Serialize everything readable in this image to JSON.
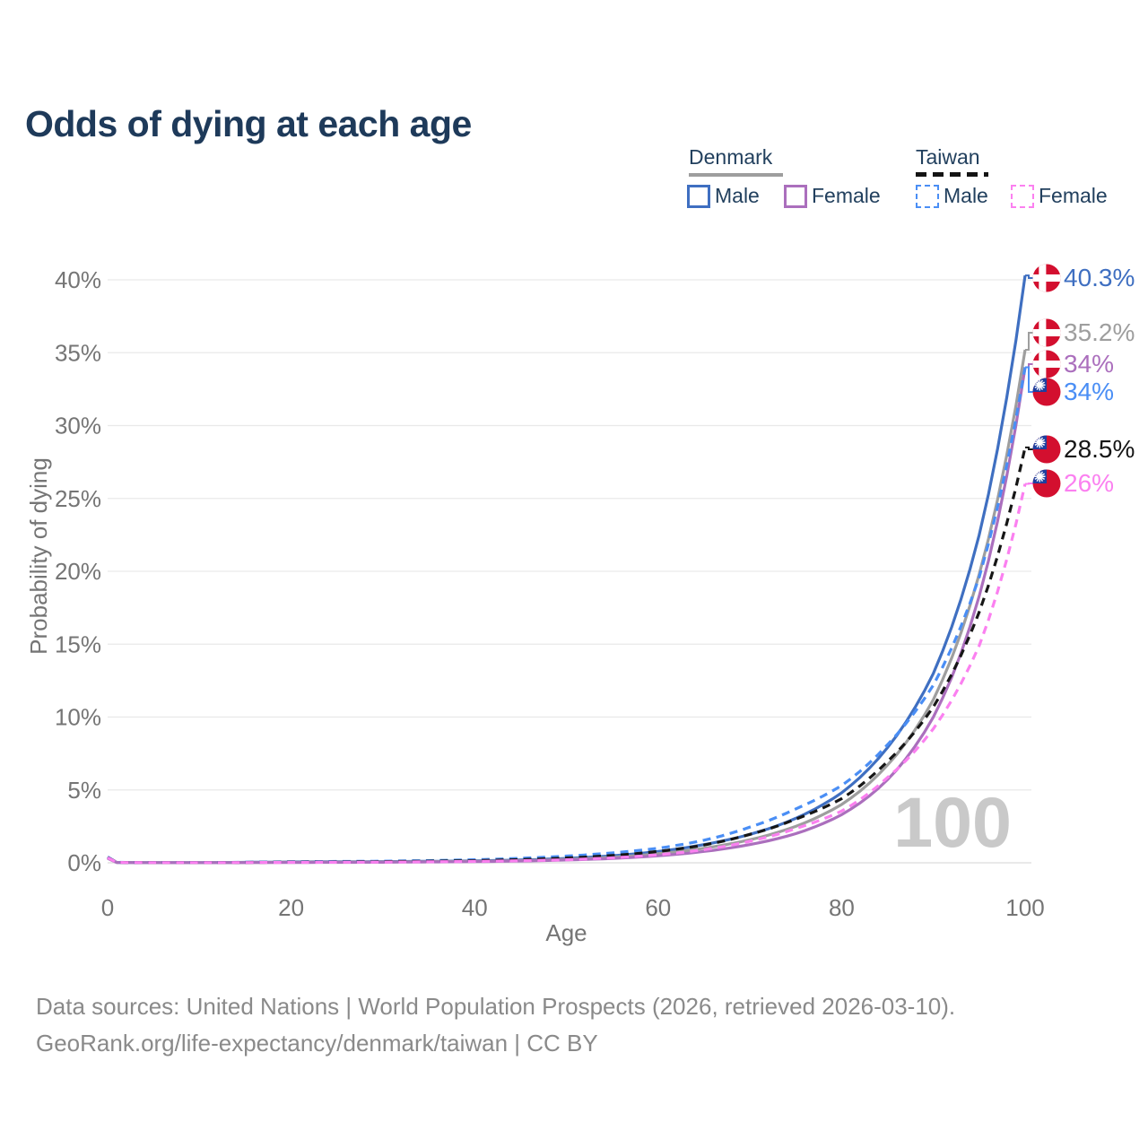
{
  "title": "Odds of dying at each age",
  "legend": {
    "groups": [
      {
        "label": "Denmark",
        "line_style": "solid",
        "line_color": "#9e9e9e",
        "items": [
          {
            "label": "Male",
            "swatch_color": "#4a77c2",
            "swatch_style": "solid"
          },
          {
            "label": "Female",
            "swatch_color": "#bd84c0",
            "swatch_style": "solid"
          }
        ]
      },
      {
        "label": "Taiwan",
        "line_style": "dashed",
        "line_color": "#141414",
        "items": [
          {
            "label": "Male",
            "swatch_color": "#4a8ef5",
            "swatch_style": "dashed"
          },
          {
            "label": "Female",
            "swatch_color": "#fb85f0",
            "swatch_style": "dashed"
          }
        ]
      }
    ]
  },
  "watermark_age": "100",
  "axis": {
    "x_title": "Age",
    "y_title": "Probability of dying",
    "x_tick_labels": [
      "0",
      "20",
      "40",
      "60",
      "80",
      "100"
    ],
    "y_tick_labels": [
      "0%",
      "5%",
      "10%",
      "15%",
      "20%",
      "25%",
      "30%",
      "35%",
      "40%"
    ]
  },
  "chart_data": {
    "type": "line",
    "title": "Odds of dying at each age",
    "xlabel": "Age",
    "ylabel": "Probability of dying",
    "xlim": [
      0,
      100
    ],
    "ylim": [
      0,
      40
    ],
    "unit": "percent",
    "grid": "horizontal",
    "legend_position": "top-right",
    "x_ticks": [
      0,
      20,
      40,
      60,
      80,
      100
    ],
    "y_ticks": [
      0,
      5,
      10,
      15,
      20,
      25,
      30,
      35,
      40
    ],
    "ages": [
      0,
      1,
      5,
      10,
      15,
      20,
      25,
      30,
      35,
      40,
      45,
      50,
      55,
      60,
      65,
      70,
      75,
      80,
      85,
      90,
      95,
      100
    ],
    "series": [
      {
        "name": "Denmark Male",
        "country": "Denmark",
        "sex": "Male",
        "color": "#3f6fc1",
        "dash": "solid",
        "flag": "denmark",
        "end_label": "40.3%",
        "end_value": 40.3,
        "values": [
          0.35,
          0.03,
          0.01,
          0.01,
          0.03,
          0.06,
          0.07,
          0.08,
          0.1,
          0.13,
          0.19,
          0.3,
          0.48,
          0.78,
          1.25,
          1.95,
          3.05,
          4.8,
          7.9,
          13.0,
          22.5,
          40.3
        ]
      },
      {
        "name": "Denmark",
        "country": "Denmark",
        "sex": "Both",
        "color": "#9e9e9e",
        "dash": "solid",
        "flag": "denmark",
        "end_label": "35.2%",
        "end_value": 35.2,
        "values": [
          0.33,
          0.025,
          0.01,
          0.01,
          0.02,
          0.045,
          0.05,
          0.06,
          0.08,
          0.1,
          0.15,
          0.24,
          0.38,
          0.62,
          1.0,
          1.58,
          2.5,
          4.0,
          6.7,
          11.2,
          19.8,
          35.2
        ]
      },
      {
        "name": "Denmark Female",
        "country": "Denmark",
        "sex": "Female",
        "color": "#ab6fbd",
        "dash": "solid",
        "flag": "denmark",
        "end_label": "34%",
        "end_value": 34,
        "values": [
          0.3,
          0.02,
          0.01,
          0.01,
          0.015,
          0.025,
          0.03,
          0.04,
          0.06,
          0.08,
          0.12,
          0.19,
          0.3,
          0.48,
          0.78,
          1.25,
          2.0,
          3.3,
          5.7,
          10.0,
          18.3,
          34.0
        ]
      },
      {
        "name": "Taiwan Male",
        "country": "Taiwan",
        "sex": "Male",
        "color": "#4a8ef5",
        "dash": "dashed",
        "flag": "taiwan",
        "end_label": "34%",
        "end_value": 34,
        "values": [
          0.4,
          0.03,
          0.01,
          0.012,
          0.035,
          0.07,
          0.09,
          0.11,
          0.15,
          0.21,
          0.31,
          0.46,
          0.68,
          1.0,
          1.55,
          2.45,
          3.7,
          5.3,
          8.1,
          12.2,
          19.6,
          34.0
        ]
      },
      {
        "name": "Taiwan",
        "country": "Taiwan",
        "sex": "Both",
        "color": "#161616",
        "dash": "dashed",
        "flag": "taiwan",
        "end_label": "28.5%",
        "end_value": 28.5,
        "values": [
          0.37,
          0.028,
          0.01,
          0.011,
          0.025,
          0.05,
          0.06,
          0.08,
          0.11,
          0.15,
          0.22,
          0.33,
          0.5,
          0.78,
          1.22,
          1.95,
          3.0,
          4.4,
          6.95,
          10.7,
          17.2,
          28.5
        ]
      },
      {
        "name": "Taiwan Female",
        "country": "Taiwan",
        "sex": "Female",
        "color": "#fb80f0",
        "dash": "dashed",
        "flag": "taiwan",
        "end_label": "26%",
        "end_value": 26,
        "values": [
          0.35,
          0.025,
          0.01,
          0.01,
          0.018,
          0.03,
          0.04,
          0.05,
          0.07,
          0.1,
          0.14,
          0.21,
          0.34,
          0.55,
          0.9,
          1.48,
          2.35,
          3.55,
          5.85,
          9.2,
          14.9,
          26.0
        ]
      }
    ]
  },
  "colors": {
    "title_text": "#1e3a5a",
    "legend_text": "#22405e",
    "axis_text": "#757575",
    "gridline": "#e9e9e9",
    "zero_line": "#dcdcdc",
    "watermark": "#c9c9c9",
    "footer_text": "#8a8a8a",
    "flag_red": "#d30f2f",
    "flag_canton_blue": "#1e3e9e"
  },
  "footer": {
    "line1": "Data sources: United Nations | World Population Prospects (2026, retrieved 2026-03-10).",
    "line2": "GeoRank.org/life-expectancy/denmark/taiwan | CC BY"
  }
}
